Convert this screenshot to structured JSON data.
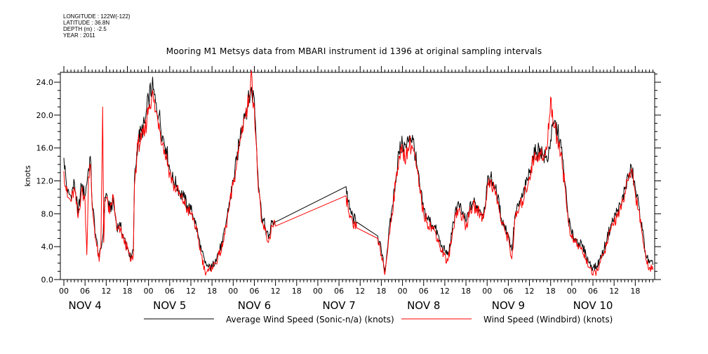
{
  "header": {
    "longitude": "LONGITUDE : 122W(-122)",
    "latitude": "LATITUDE : 36.8N",
    "depth": "DEPTH (m) : -2.5",
    "year": "YEAR : 2011"
  },
  "chart_data": {
    "type": "line",
    "title": "Mooring M1 Metsys data from MBARI instrument id 1396 at original sampling intervals",
    "ylabel": "knots",
    "xlabel": "",
    "ylim": [
      0,
      25.2
    ],
    "yticks": [
      "0.0",
      "4.0",
      "8.0",
      "12.0",
      "16.0",
      "20.0",
      "24.0"
    ],
    "ytick_values": [
      0,
      4,
      8,
      12,
      16,
      20,
      24
    ],
    "xlim_hours": [
      -1,
      167.5
    ],
    "hour_ticks": [
      "00",
      "06",
      "12",
      "18"
    ],
    "days": [
      "NOV  4",
      "NOV  5",
      "NOV  6",
      "NOV  7",
      "NOV  8",
      "NOV  9",
      "NOV 10"
    ],
    "grid": false,
    "legend_position": "bottom",
    "series": [
      {
        "name": "Average Wind Speed (Sonic-n/a) (knots)",
        "color": "#000000",
        "points": [
          [
            0,
            14.8
          ],
          [
            1,
            10.5
          ],
          [
            2,
            10.2
          ],
          [
            3,
            11.8
          ],
          [
            4,
            8.0
          ],
          [
            5,
            11.5
          ],
          [
            6,
            10.2
          ],
          [
            7,
            13.5
          ],
          [
            7.5,
            15.0
          ],
          [
            8,
            9.5
          ],
          [
            9,
            5.5
          ],
          [
            10,
            2.5
          ],
          [
            11,
            5.0
          ],
          [
            11.6,
            10.0
          ],
          [
            12,
            10.5
          ],
          [
            13,
            8.5
          ],
          [
            14,
            9.5
          ],
          [
            15,
            6.5
          ],
          [
            16,
            6.5
          ],
          [
            17,
            5.0
          ],
          [
            18,
            4.0
          ],
          [
            19,
            2.5
          ],
          [
            19.7,
            3.5
          ],
          [
            20,
            12.0
          ],
          [
            21,
            17.0
          ],
          [
            22,
            18.0
          ],
          [
            23,
            19.0
          ],
          [
            24,
            22.0
          ],
          [
            25,
            23.5
          ],
          [
            26,
            21.5
          ],
          [
            27,
            20.0
          ],
          [
            28,
            17.5
          ],
          [
            29,
            16.0
          ],
          [
            30,
            13.5
          ],
          [
            31,
            12.0
          ],
          [
            32,
            11.5
          ],
          [
            33,
            10.5
          ],
          [
            34,
            10.0
          ],
          [
            35,
            9.0
          ],
          [
            36,
            8.5
          ],
          [
            37,
            7.5
          ],
          [
            38,
            5.5
          ],
          [
            39,
            3.5
          ],
          [
            40,
            2.0
          ],
          [
            41,
            1.5
          ],
          [
            42,
            1.5
          ],
          [
            43,
            2.5
          ],
          [
            44,
            3.5
          ],
          [
            45,
            4.5
          ],
          [
            46,
            7.0
          ],
          [
            47,
            9.5
          ],
          [
            48,
            12.0
          ],
          [
            49,
            14.5
          ],
          [
            50,
            17.5
          ],
          [
            51,
            20.0
          ],
          [
            52,
            21.0
          ],
          [
            53,
            23.0
          ],
          [
            54,
            22.0
          ],
          [
            55,
            13.0
          ],
          [
            56,
            8.0
          ],
          [
            57,
            6.5
          ],
          [
            58,
            5.0
          ],
          [
            59,
            7.0
          ],
          [
            60,
            7.0
          ],
          [
            80,
            11.3
          ],
          [
            81,
            8.5
          ],
          [
            82,
            7.5
          ],
          [
            83,
            7.0
          ],
          [
            89,
            5.3
          ],
          [
            90,
            3.5
          ],
          [
            91,
            1.0
          ],
          [
            92,
            5.0
          ],
          [
            93,
            8.5
          ],
          [
            94,
            12.0
          ],
          [
            95,
            15.5
          ],
          [
            96,
            16.5
          ],
          [
            97,
            16.0
          ],
          [
            98,
            17.5
          ],
          [
            99,
            17.0
          ],
          [
            100,
            14.0
          ],
          [
            101,
            11.0
          ],
          [
            102,
            8.5
          ],
          [
            103,
            7.5
          ],
          [
            104,
            7.0
          ],
          [
            105,
            6.5
          ],
          [
            106,
            5.5
          ],
          [
            107,
            4.0
          ],
          [
            108,
            3.5
          ],
          [
            109,
            3.0
          ],
          [
            110,
            5.5
          ],
          [
            111,
            8.5
          ],
          [
            112,
            9.0
          ],
          [
            113,
            8.0
          ],
          [
            114,
            7.0
          ],
          [
            115,
            8.5
          ],
          [
            116,
            9.5
          ],
          [
            117,
            9.0
          ],
          [
            118,
            8.5
          ],
          [
            119,
            8.0
          ],
          [
            120,
            11.5
          ],
          [
            121,
            12.5
          ],
          [
            122,
            11.5
          ],
          [
            123,
            10.0
          ],
          [
            124,
            7.5
          ],
          [
            125,
            6.5
          ],
          [
            126,
            5.5
          ],
          [
            127,
            3.5
          ],
          [
            128,
            8.0
          ],
          [
            129,
            9.0
          ],
          [
            130,
            10.0
          ],
          [
            131,
            11.5
          ],
          [
            132,
            13.0
          ],
          [
            133,
            15.0
          ],
          [
            134,
            15.5
          ],
          [
            135,
            16.0
          ],
          [
            136,
            15.0
          ],
          [
            137,
            14.5
          ],
          [
            138,
            17.0
          ],
          [
            139,
            19.0
          ],
          [
            140,
            18.0
          ],
          [
            141,
            16.0
          ],
          [
            142,
            12.0
          ],
          [
            143,
            7.5
          ],
          [
            144,
            5.5
          ],
          [
            145,
            5.0
          ],
          [
            146,
            4.5
          ],
          [
            147,
            4.0
          ],
          [
            148,
            3.0
          ],
          [
            149,
            2.0
          ],
          [
            150,
            1.5
          ],
          [
            151,
            1.5
          ],
          [
            152,
            2.5
          ],
          [
            153,
            3.5
          ],
          [
            154,
            5.0
          ],
          [
            155,
            6.5
          ],
          [
            156,
            7.5
          ],
          [
            157,
            8.5
          ],
          [
            158,
            9.0
          ],
          [
            159,
            11.0
          ],
          [
            160,
            12.5
          ],
          [
            161,
            13.5
          ],
          [
            162,
            11.0
          ],
          [
            163,
            9.0
          ],
          [
            164,
            6.0
          ],
          [
            165,
            3.0
          ],
          [
            166,
            2.0
          ],
          [
            167,
            1.8
          ]
        ]
      },
      {
        "name": "Wind Speed (Windbird) (knots)",
        "color": "#ff0000",
        "points": [
          [
            0,
            13.2
          ],
          [
            1,
            10.0
          ],
          [
            2,
            9.5
          ],
          [
            3,
            11.0
          ],
          [
            4,
            7.5
          ],
          [
            5,
            10.8
          ],
          [
            6,
            9.6
          ],
          [
            6.5,
            3.0
          ],
          [
            7,
            12.5
          ],
          [
            7.5,
            14.0
          ],
          [
            8,
            9.0
          ],
          [
            9,
            5.0
          ],
          [
            10,
            2.2
          ],
          [
            10.5,
            4.0
          ],
          [
            11,
            21.0
          ],
          [
            11.3,
            4.5
          ],
          [
            11.6,
            9.5
          ],
          [
            12,
            10.0
          ],
          [
            13,
            8.0
          ],
          [
            14,
            10.2
          ],
          [
            15,
            6.0
          ],
          [
            16,
            6.0
          ],
          [
            17,
            4.8
          ],
          [
            18,
            3.8
          ],
          [
            19,
            2.2
          ],
          [
            19.7,
            3.0
          ],
          [
            20,
            11.5
          ],
          [
            21,
            16.5
          ],
          [
            22,
            17.0
          ],
          [
            23,
            18.0
          ],
          [
            24,
            21.0
          ],
          [
            25,
            22.5
          ],
          [
            26,
            20.5
          ],
          [
            27,
            19.0
          ],
          [
            28,
            16.5
          ],
          [
            29,
            15.0
          ],
          [
            30,
            13.0
          ],
          [
            31,
            11.5
          ],
          [
            32,
            11.0
          ],
          [
            33,
            10.0
          ],
          [
            34,
            9.5
          ],
          [
            35,
            8.5
          ],
          [
            36,
            8.0
          ],
          [
            37,
            7.0
          ],
          [
            38,
            5.0
          ],
          [
            39,
            3.0
          ],
          [
            40,
            1.0
          ],
          [
            41,
            1.0
          ],
          [
            42,
            1.5
          ],
          [
            43,
            2.0
          ],
          [
            44,
            3.0
          ],
          [
            45,
            4.0
          ],
          [
            46,
            6.5
          ],
          [
            47,
            9.0
          ],
          [
            48,
            11.5
          ],
          [
            49,
            14.0
          ],
          [
            50,
            17.0
          ],
          [
            51,
            19.5
          ],
          [
            52,
            20.5
          ],
          [
            53,
            24.8
          ],
          [
            54,
            21.0
          ],
          [
            55,
            12.0
          ],
          [
            56,
            7.0
          ],
          [
            57,
            6.0
          ],
          [
            58,
            4.5
          ],
          [
            59,
            6.5
          ],
          [
            60,
            6.5
          ],
          [
            80,
            10.2
          ],
          [
            81,
            7.5
          ],
          [
            82,
            6.5
          ],
          [
            83,
            6.3
          ],
          [
            89,
            5.0
          ],
          [
            90,
            3.0
          ],
          [
            91,
            0.6
          ],
          [
            92,
            4.5
          ],
          [
            93,
            8.0
          ],
          [
            94,
            11.5
          ],
          [
            95,
            15.0
          ],
          [
            96,
            15.5
          ],
          [
            97,
            15.0
          ],
          [
            98,
            16.5
          ],
          [
            99,
            16.0
          ],
          [
            100,
            13.5
          ],
          [
            101,
            10.5
          ],
          [
            102,
            8.0
          ],
          [
            103,
            7.0
          ],
          [
            104,
            6.5
          ],
          [
            105,
            6.0
          ],
          [
            106,
            5.0
          ],
          [
            107,
            3.5
          ],
          [
            108,
            3.0
          ],
          [
            108.5,
            2.0
          ],
          [
            109,
            2.5
          ],
          [
            110,
            5.0
          ],
          [
            111,
            8.0
          ],
          [
            112,
            8.5
          ],
          [
            113,
            7.5
          ],
          [
            114,
            6.5
          ],
          [
            115,
            8.0
          ],
          [
            116,
            9.0
          ],
          [
            117,
            8.5
          ],
          [
            118,
            8.0
          ],
          [
            119,
            7.5
          ],
          [
            120,
            11.0
          ],
          [
            121,
            12.0
          ],
          [
            122,
            11.0
          ],
          [
            123,
            9.5
          ],
          [
            124,
            7.0
          ],
          [
            125,
            6.0
          ],
          [
            126,
            5.0
          ],
          [
            127,
            2.5
          ],
          [
            128,
            7.5
          ],
          [
            129,
            8.5
          ],
          [
            130,
            9.5
          ],
          [
            131,
            11.0
          ],
          [
            132,
            12.5
          ],
          [
            133,
            14.5
          ],
          [
            134,
            15.0
          ],
          [
            135,
            15.5
          ],
          [
            136,
            14.5
          ],
          [
            137,
            16.0
          ],
          [
            138,
            22.2
          ],
          [
            139,
            18.5
          ],
          [
            140,
            17.0
          ],
          [
            141,
            15.5
          ],
          [
            142,
            11.5
          ],
          [
            143,
            7.0
          ],
          [
            144,
            5.0
          ],
          [
            145,
            4.5
          ],
          [
            146,
            4.0
          ],
          [
            147,
            3.5
          ],
          [
            148,
            2.5
          ],
          [
            149,
            1.5
          ],
          [
            150,
            0.5
          ],
          [
            151,
            1.0
          ],
          [
            152,
            2.0
          ],
          [
            153,
            3.0
          ],
          [
            154,
            4.5
          ],
          [
            155,
            6.0
          ],
          [
            156,
            7.0
          ],
          [
            157,
            8.0
          ],
          [
            158,
            8.5
          ],
          [
            159,
            10.5
          ],
          [
            160,
            12.0
          ],
          [
            161,
            13.5
          ],
          [
            162,
            10.5
          ],
          [
            163,
            8.5
          ],
          [
            164,
            5.5
          ],
          [
            165,
            2.5
          ],
          [
            166,
            1.5
          ],
          [
            167,
            1.2
          ]
        ]
      }
    ]
  }
}
